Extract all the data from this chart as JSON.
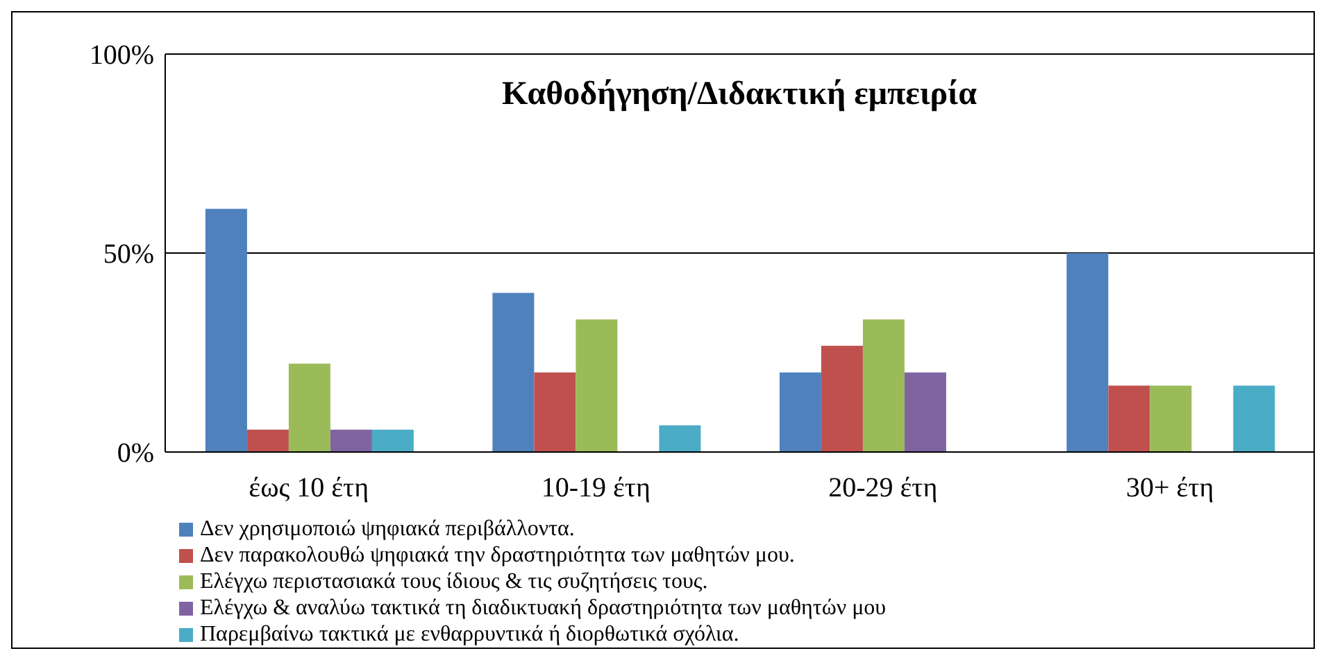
{
  "chart_data": {
    "type": "bar",
    "title": "Καθοδήγηση/Διδακτική εμπειρία",
    "categories": [
      "έως 10 έτη",
      "10-19 έτη",
      "20-29 έτη",
      "30+ έτη"
    ],
    "series": [
      {
        "name": "Δεν χρησιμοποιώ ψηφιακά περιβάλλοντα.",
        "color": "#4f81bd",
        "values": [
          61.1,
          40,
          20,
          50
        ]
      },
      {
        "name": "Δεν παρακολουθώ ψηφιακά την δραστηριότητα των μαθητών μου.",
        "color": "#c0504d",
        "values": [
          5.6,
          20,
          26.7,
          16.7
        ]
      },
      {
        "name": "Ελέγχω περιστασιακά τους ίδιους & τις συζητήσεις τους.",
        "color": "#9bbb59",
        "values": [
          22.2,
          33.3,
          33.3,
          16.7
        ]
      },
      {
        "name": "Ελέγχω & αναλύω τακτικά τη διαδικτυακή δραστηριότητα των μαθητών μου",
        "color": "#8064a2",
        "values": [
          5.6,
          0,
          20,
          0
        ]
      },
      {
        "name": "Παρεμβαίνω τακτικά με ενθαρρυντικά ή διορθωτικά σχόλια.",
        "color": "#4bacc6",
        "values": [
          5.6,
          6.7,
          0,
          16.7
        ]
      }
    ],
    "ylim": [
      0,
      100
    ],
    "yticks": [
      {
        "value": 0,
        "label": "0%"
      },
      {
        "value": 50,
        "label": "50%"
      },
      {
        "value": 100,
        "label": "100%"
      }
    ],
    "grid": "y",
    "legend": "bottom left"
  }
}
